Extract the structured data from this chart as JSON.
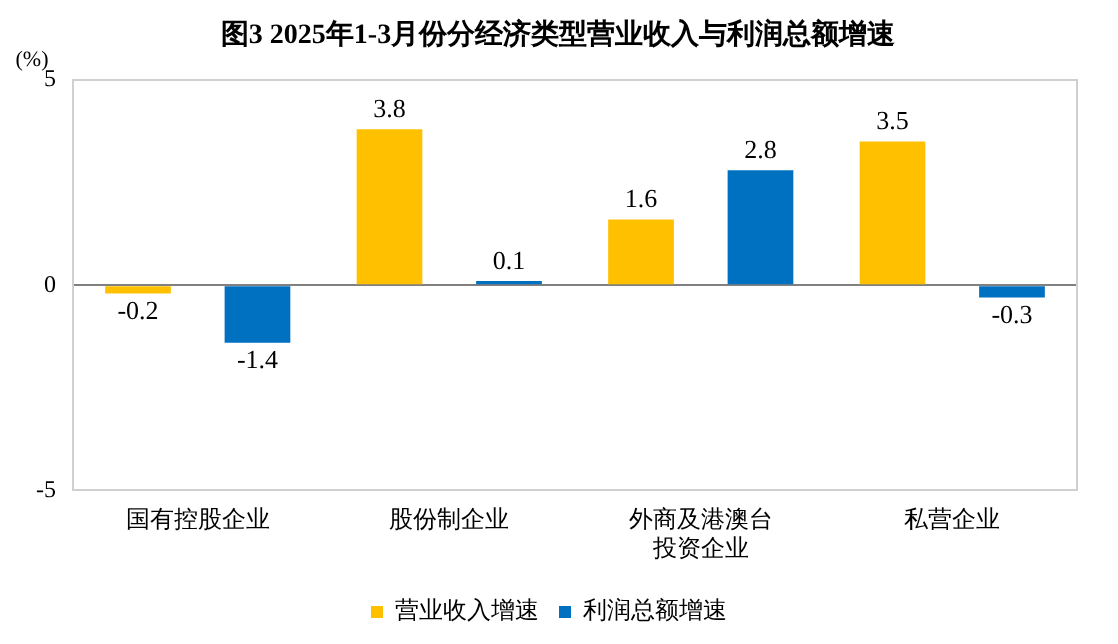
{
  "chart_data": {
    "type": "bar",
    "title": "图3 2025年1-3月份分经济类型营业收入与利润总额增速",
    "ylabel": "(%)",
    "categories": [
      "国有控股企业",
      "股份制企业",
      "外商及港澳台投资企业",
      "私营企业"
    ],
    "series": [
      {
        "name": "营业收入增速",
        "color": "#ffc000",
        "values": [
          -0.2,
          3.8,
          1.6,
          3.5
        ]
      },
      {
        "name": "利润总额增速",
        "color": "#0070c0",
        "values": [
          -1.4,
          0.1,
          2.8,
          -0.3
        ]
      }
    ],
    "ylim": [
      -5,
      5
    ],
    "yticks": [
      -5,
      0,
      5
    ],
    "grid": "y",
    "legend": "bottom",
    "data_labels": true
  }
}
